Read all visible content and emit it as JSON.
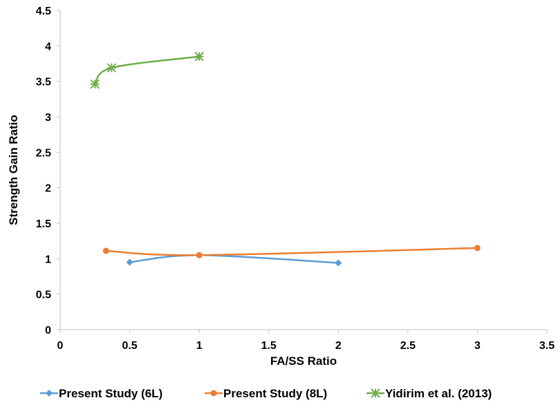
{
  "chart_data": {
    "type": "line",
    "title": "",
    "xlabel": "FA/SS Ratio",
    "ylabel": "Strength Gain Ratio",
    "xlim": [
      0,
      3.5
    ],
    "ylim": [
      0,
      4.5
    ],
    "xticks": [
      0,
      0.5,
      1,
      1.5,
      2,
      2.5,
      3,
      3.5
    ],
    "yticks": [
      0,
      0.5,
      1,
      1.5,
      2,
      2.5,
      3,
      3.5,
      4,
      4.5
    ],
    "xtick_labels": [
      "0",
      "0.5",
      "1",
      "1.5",
      "2",
      "2.5",
      "3",
      "3.5"
    ],
    "ytick_labels": [
      "0",
      "0.5",
      "1",
      "1.5",
      "2",
      "2.5",
      "3",
      "3.5",
      "4",
      "4.5"
    ],
    "grid": false,
    "legend_position": "bottom",
    "series": [
      {
        "name": "Present Study (6L)",
        "color": "#5B9BD5",
        "marker": "diamond",
        "x": [
          0.5,
          1,
          2
        ],
        "y": [
          0.95,
          1.05,
          0.94
        ]
      },
      {
        "name": "Present Study (8L)",
        "color": "#ED7D31",
        "marker": "circle",
        "x": [
          0.33,
          1,
          3
        ],
        "y": [
          1.11,
          1.05,
          1.15
        ]
      },
      {
        "name": "Yidirim et al. (2013)",
        "color": "#70AD47",
        "marker": "asterisk",
        "x": [
          0.25,
          0.37,
          1
        ],
        "y": [
          3.46,
          3.69,
          3.85
        ]
      }
    ]
  }
}
